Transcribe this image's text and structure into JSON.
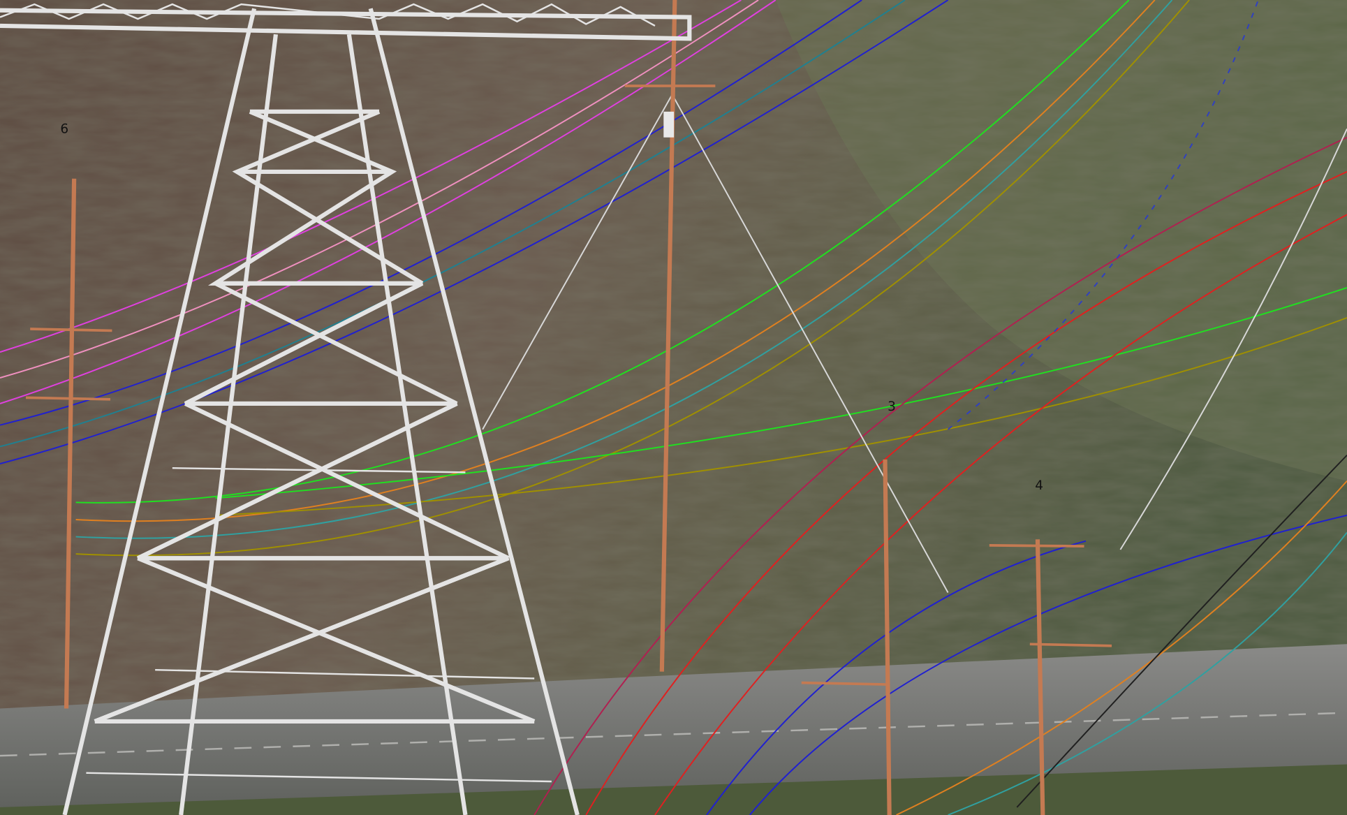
{
  "structure_labels": [
    "6",
    "3",
    "4"
  ]
}
